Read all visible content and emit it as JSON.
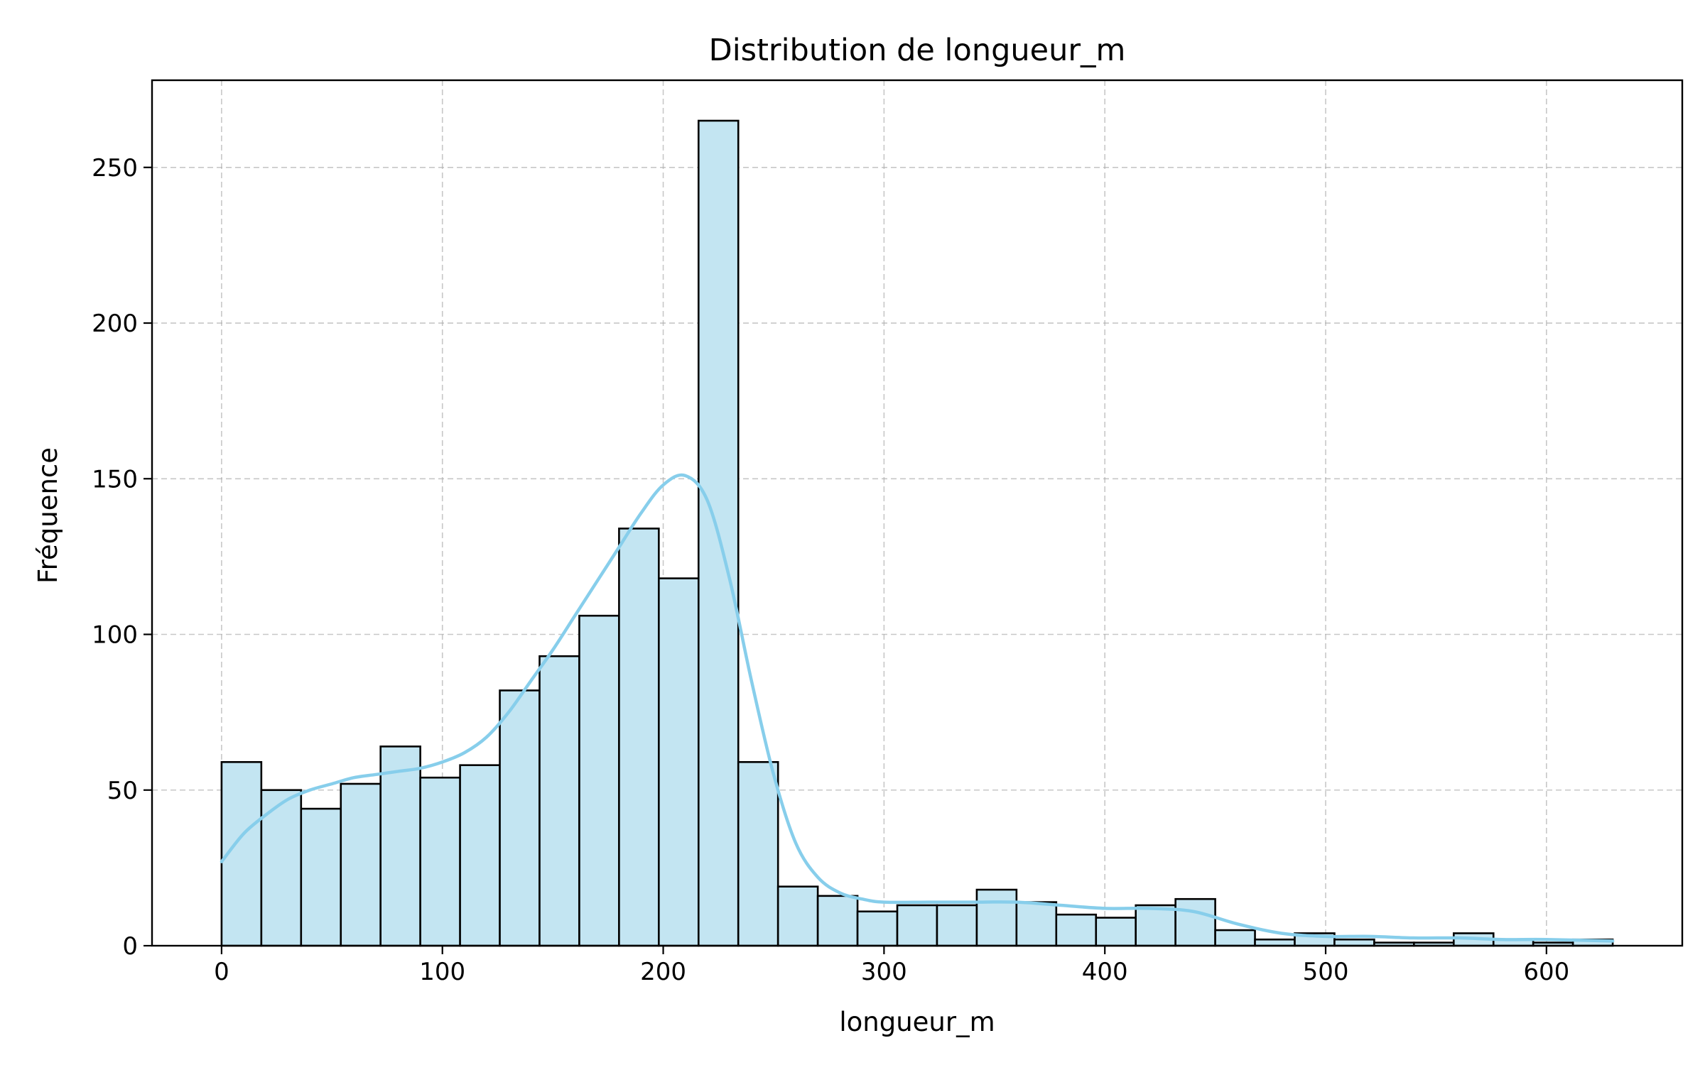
{
  "chart_data": {
    "type": "bar",
    "title": "Distribution de longueur_m",
    "xlabel": "longueur_m",
    "ylabel": "Fréquence",
    "xlim": [
      -31.5,
      661.5
    ],
    "ylim": [
      0,
      278
    ],
    "xticks": [
      0,
      100,
      200,
      300,
      400,
      500,
      600
    ],
    "yticks": [
      0,
      50,
      100,
      150,
      200,
      250
    ],
    "grid": true,
    "bin_edges": [
      0,
      18,
      36,
      54,
      72,
      90,
      108,
      126,
      144,
      162,
      180,
      198,
      216,
      234,
      252,
      270,
      288,
      306,
      324,
      342,
      360,
      378,
      396,
      414,
      432,
      450,
      468,
      486,
      504,
      522,
      540,
      558,
      576,
      594,
      612,
      630
    ],
    "values": [
      59,
      50,
      44,
      52,
      64,
      54,
      58,
      82,
      93,
      106,
      134,
      118,
      265,
      59,
      19,
      16,
      11,
      13,
      13,
      18,
      14,
      10,
      9,
      13,
      15,
      5,
      2,
      4,
      2,
      1,
      1,
      4,
      2,
      1,
      2
    ],
    "kde": {
      "x": [
        0,
        10,
        20,
        30,
        40,
        50,
        60,
        70,
        80,
        90,
        100,
        110,
        120,
        130,
        140,
        150,
        160,
        170,
        180,
        190,
        200,
        210,
        220,
        230,
        240,
        250,
        260,
        270,
        280,
        290,
        300,
        320,
        340,
        360,
        380,
        400,
        420,
        440,
        460,
        480,
        500,
        520,
        540,
        560,
        580,
        600,
        630
      ],
      "y": [
        27,
        36,
        42,
        47,
        50,
        52,
        54,
        55,
        56,
        57,
        59,
        62,
        67,
        75,
        85,
        95,
        106,
        117,
        128,
        139,
        148,
        151,
        143,
        118,
        85,
        55,
        33,
        22,
        17,
        15,
        14,
        14,
        14,
        14,
        13,
        12,
        12,
        11,
        7,
        4,
        3,
        3,
        2.5,
        2.5,
        2,
        2,
        1.5
      ]
    },
    "colors": {
      "bar_fill": "#c3e5f2",
      "bar_edge": "#000000",
      "kde_line": "#87ceeb",
      "grid": "#b0b0b0"
    }
  }
}
